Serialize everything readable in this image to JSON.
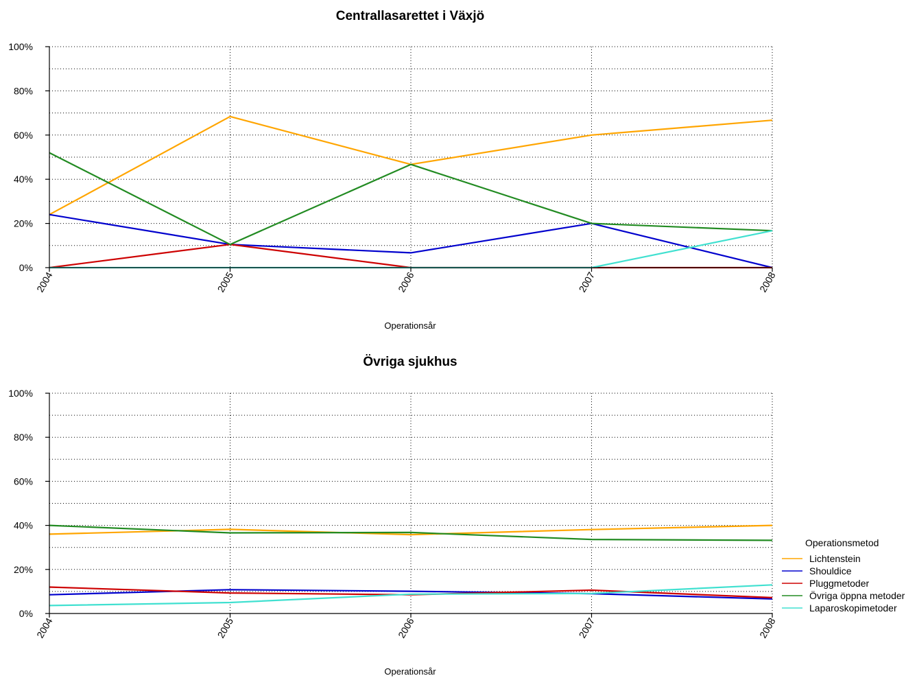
{
  "chart_data": [
    {
      "type": "line",
      "title": "Centrallasarettet i Växjö",
      "xlabel": "Operationsår",
      "ylabel": "",
      "x": [
        "2004",
        "2005",
        "2006",
        "2007",
        "2008"
      ],
      "ylim": [
        0,
        100
      ],
      "yticks": [
        "0%",
        "20%",
        "40%",
        "60%",
        "80%",
        "100%"
      ],
      "ytick_values": [
        0,
        20,
        40,
        60,
        80,
        100
      ],
      "grid": true,
      "series": [
        {
          "name": "Lichtenstein",
          "color": "#FFA500",
          "values": [
            24,
            68.4,
            46.7,
            60,
            66.7
          ]
        },
        {
          "name": "Shouldice",
          "color": "#0000CD",
          "values": [
            24,
            10.5,
            6.7,
            20,
            0
          ]
        },
        {
          "name": "Pluggmetoder",
          "color": "#CD0000",
          "values": [
            0,
            10.5,
            0,
            0,
            0
          ]
        },
        {
          "name": "Övriga öppna metoder",
          "color": "#228B22",
          "values": [
            52,
            10.5,
            46.7,
            20,
            16.7
          ]
        },
        {
          "name": "Laparoskopimetoder",
          "color": "#40E0D0",
          "values": [
            0,
            0,
            0,
            0,
            16.7
          ]
        }
      ]
    },
    {
      "type": "line",
      "title": "Övriga sjukhus",
      "xlabel": "Operationsår",
      "ylabel": "",
      "x": [
        "2004",
        "2005",
        "2006",
        "2007",
        "2008"
      ],
      "ylim": [
        0,
        100
      ],
      "yticks": [
        "0%",
        "20%",
        "40%",
        "60%",
        "80%",
        "100%"
      ],
      "ytick_values": [
        0,
        20,
        40,
        60,
        80,
        100
      ],
      "grid": true,
      "series": [
        {
          "name": "Lichtenstein",
          "color": "#FFA500",
          "values": [
            36,
            38.2,
            35.8,
            38.1,
            40
          ]
        },
        {
          "name": "Shouldice",
          "color": "#0000CD",
          "values": [
            8.5,
            10.8,
            10.1,
            9,
            6.6
          ]
        },
        {
          "name": "Pluggmetoder",
          "color": "#CD0000",
          "values": [
            12,
            9.3,
            8.5,
            10.6,
            7.2
          ]
        },
        {
          "name": "Övriga öppna metoder",
          "color": "#228B22",
          "values": [
            40,
            36.6,
            36.8,
            33.6,
            33.2
          ]
        },
        {
          "name": "Laparoskopimetoder",
          "color": "#40E0D0",
          "values": [
            3.6,
            5,
            8.8,
            9.1,
            13
          ]
        }
      ]
    }
  ],
  "legend": {
    "title": "Operationsmetod",
    "placement": "right",
    "items": [
      {
        "label": "Lichtenstein",
        "color": "#FFA500"
      },
      {
        "label": "Shouldice",
        "color": "#0000CD"
      },
      {
        "label": "Pluggmetoder",
        "color": "#CD0000"
      },
      {
        "label": "Övriga öppna metoder",
        "color": "#228B22"
      },
      {
        "label": "Laparoskopimetoder",
        "color": "#40E0D0"
      }
    ]
  }
}
